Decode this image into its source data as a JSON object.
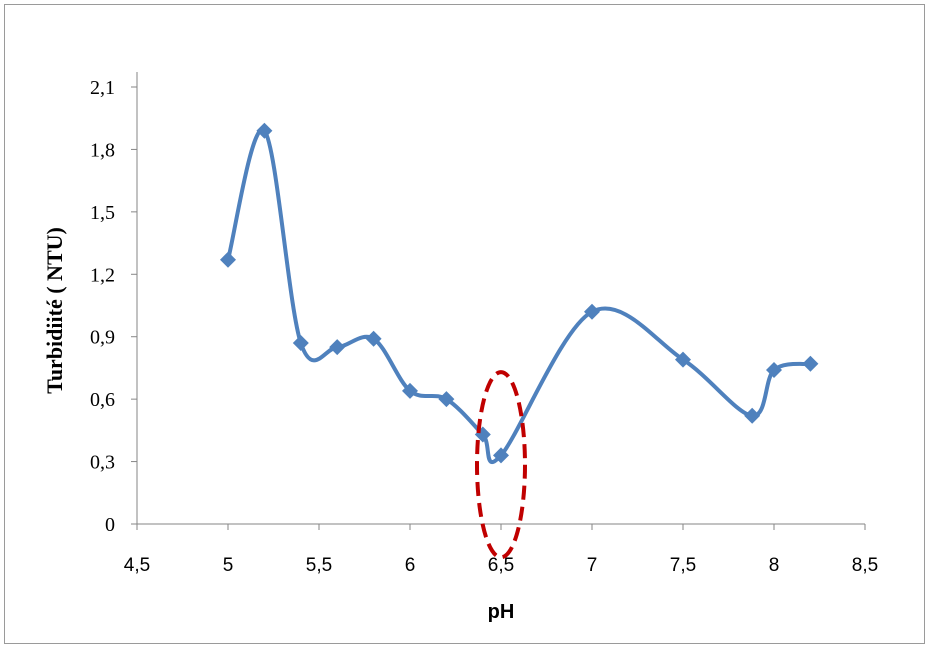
{
  "chart_data": {
    "type": "line",
    "xlabel": "pH",
    "ylabel": "Turbidiité ( NTU)",
    "xlim": [
      4.5,
      8.5
    ],
    "ylim": [
      0,
      2.1
    ],
    "x_ticks": [
      "4,5",
      "5",
      "5,5",
      "6",
      "6,5",
      "7",
      "7,5",
      "8",
      "8,5"
    ],
    "x_tick_values": [
      4.5,
      5,
      5.5,
      6,
      6.5,
      7,
      7.5,
      8,
      8.5
    ],
    "y_ticks": [
      "0",
      "0,3",
      "0,6",
      "0,9",
      "1,2",
      "1,5",
      "1,8",
      "2,1"
    ],
    "y_tick_values": [
      0,
      0.3,
      0.6,
      0.9,
      1.2,
      1.5,
      1.8,
      2.1
    ],
    "grid": false,
    "smooth": true,
    "series": [
      {
        "color": "#4f81bd",
        "marker": "diamond",
        "x": [
          5.0,
          5.2,
          5.4,
          5.6,
          5.8,
          6.0,
          6.2,
          6.4,
          6.5,
          7.0,
          7.5,
          7.88,
          8.0,
          8.2
        ],
        "y": [
          1.27,
          1.89,
          0.87,
          0.85,
          0.89,
          0.64,
          0.6,
          0.43,
          0.33,
          1.02,
          0.79,
          0.52,
          0.74,
          0.77
        ]
      }
    ],
    "annotation": {
      "type": "dashed-ellipse",
      "color": "#c00000",
      "x_center": 6.5,
      "y_range": [
        -0.16,
        0.73
      ]
    }
  }
}
